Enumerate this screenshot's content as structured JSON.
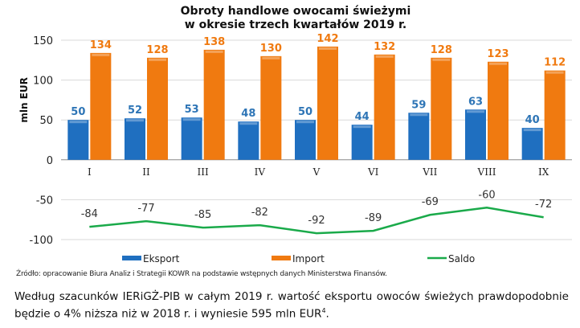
{
  "chart_data": {
    "type": "bar+line",
    "title": "Obroty handlowe owocami świeżymi\nw okresie trzech kwartałów 2019 r.",
    "title_lines": [
      "Obroty handlowe owocami świeżymi",
      "w okresie trzech kwartałów 2019 r."
    ],
    "ylabel": "mln EUR",
    "xlabel": "",
    "ylim": [
      -100,
      150
    ],
    "yticks": [
      -100,
      -50,
      0,
      50,
      100,
      150
    ],
    "grid": true,
    "legend": "bottom",
    "categories": [
      "I",
      "II",
      "III",
      "IV",
      "V",
      "VI",
      "VII",
      "VIII",
      "IX"
    ],
    "series": [
      {
        "name": "Eksport",
        "type": "bar",
        "color": "#1f6fc0",
        "label_color": "#2e75b6",
        "values": [
          50,
          52,
          53,
          48,
          50,
          44,
          59,
          63,
          40
        ]
      },
      {
        "name": "Import",
        "type": "bar",
        "color": "#f07a10",
        "label_color": "#f07a10",
        "values": [
          134,
          128,
          138,
          130,
          142,
          132,
          128,
          123,
          112
        ]
      },
      {
        "name": "Saldo",
        "type": "line",
        "color": "#1aaa4a",
        "label_color": "#333333",
        "values": [
          -84,
          -77,
          -85,
          -82,
          -92,
          -89,
          -69,
          -60,
          -72
        ]
      }
    ]
  },
  "source": "Źródło: opracowanie Biura Analiz i Strategii KOWR na podstawie wstępnych danych Ministerstwa Finansów.",
  "paragraph": {
    "text": "Według szacunków IERiGŻ-PIB w całym 2019 r. wartość eksportu owoców świeżych prawdopodobnie będzie o 4% niższa niż w 2018 r. i wyniesie 595 mln EUR",
    "footnote": "4",
    "end": "."
  }
}
